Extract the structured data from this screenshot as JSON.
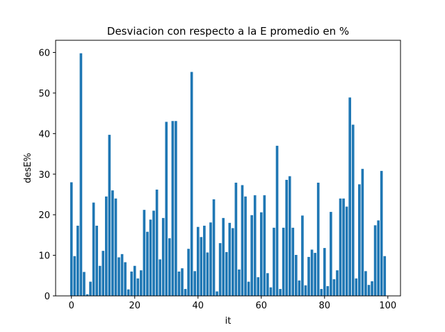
{
  "chart_data": {
    "type": "bar",
    "title": "Desviacion con respecto a la E promedio en %",
    "xlabel": "it",
    "ylabel": "desE%",
    "xlim": [
      -5,
      104
    ],
    "ylim": [
      0,
      63
    ],
    "xticks": [
      0,
      20,
      40,
      60,
      80,
      100
    ],
    "yticks": [
      0,
      10,
      20,
      30,
      40,
      50,
      60
    ],
    "grid": false,
    "legend": "none",
    "bar_color": "#1f77b4",
    "x": [
      0,
      1,
      2,
      3,
      4,
      5,
      6,
      7,
      8,
      9,
      10,
      11,
      12,
      13,
      14,
      15,
      16,
      17,
      18,
      19,
      20,
      21,
      22,
      23,
      24,
      25,
      26,
      27,
      28,
      29,
      30,
      31,
      32,
      33,
      34,
      35,
      36,
      37,
      38,
      39,
      40,
      41,
      42,
      43,
      44,
      45,
      46,
      47,
      48,
      49,
      50,
      51,
      52,
      53,
      54,
      55,
      56,
      57,
      58,
      59,
      60,
      61,
      62,
      63,
      64,
      65,
      66,
      67,
      68,
      69,
      70,
      71,
      72,
      73,
      74,
      75,
      76,
      77,
      78,
      79,
      80,
      81,
      82,
      83,
      84,
      85,
      86,
      87,
      88,
      89,
      90,
      91,
      92,
      93,
      94,
      95,
      96,
      97,
      98,
      99
    ],
    "values": [
      28.0,
      9.8,
      17.3,
      59.8,
      5.9,
      0.4,
      3.5,
      23.0,
      17.3,
      7.4,
      11.1,
      24.5,
      39.7,
      26.0,
      24.0,
      9.5,
      10.3,
      8.3,
      1.6,
      6.0,
      7.4,
      4.3,
      6.3,
      21.2,
      15.8,
      18.8,
      21.0,
      26.2,
      9.0,
      19.2,
      42.9,
      14.2,
      43.1,
      43.1,
      6.0,
      6.8,
      1.7,
      11.6,
      55.2,
      6.1,
      17.0,
      14.5,
      17.3,
      10.7,
      18.1,
      23.8,
      1.1,
      13.0,
      19.2,
      10.8,
      18.0,
      16.7,
      27.9,
      6.5,
      27.3,
      24.5,
      3.5,
      19.9,
      24.8,
      4.6,
      20.6,
      24.8,
      5.6,
      2.1,
      16.8,
      37.0,
      1.7,
      16.8,
      28.6,
      29.5,
      16.8,
      10.1,
      3.8,
      19.8,
      2.6,
      9.6,
      11.4,
      10.6,
      27.9,
      1.7,
      11.8,
      2.4,
      20.7,
      4.1,
      6.3,
      24.0,
      24.0,
      22.0,
      48.9,
      42.2,
      4.3,
      27.5,
      31.3,
      6.1,
      2.7,
      3.6,
      17.4,
      18.6,
      30.8,
      9.8
    ]
  }
}
